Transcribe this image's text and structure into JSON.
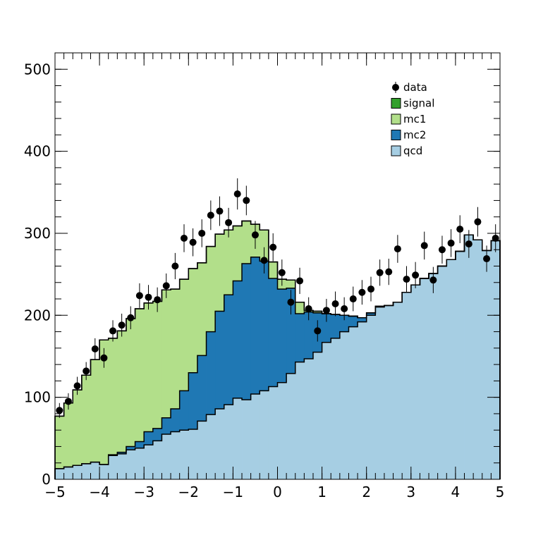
{
  "chart_data": {
    "type": "stacked-histogram",
    "title": "",
    "xlabel": "",
    "ylabel": "",
    "xlim": [
      -5,
      5
    ],
    "ylim": [
      0,
      520
    ],
    "x_ticks": [
      -5,
      -4,
      -3,
      -2,
      -1,
      0,
      1,
      2,
      3,
      4,
      5
    ],
    "x_tick_labels": [
      "−5",
      "−4",
      "−3",
      "−2",
      "−1",
      "0",
      "1",
      "2",
      "3",
      "4",
      "5"
    ],
    "y_ticks": [
      0,
      100,
      200,
      300,
      400,
      500
    ],
    "y_tick_labels": [
      "0",
      "100",
      "200",
      "300",
      "400",
      "500"
    ],
    "grid": false,
    "legend_position": "top-right",
    "bins": {
      "low": -5,
      "high": 5,
      "count": 50
    },
    "stack": [
      {
        "name": "qcd",
        "color": "#a6cee3",
        "values": [
          13,
          15,
          17,
          19,
          21,
          18,
          29,
          31,
          36,
          38,
          42,
          47,
          55,
          58,
          60,
          61,
          71,
          79,
          86,
          91,
          99,
          97,
          104,
          108,
          113,
          118,
          129,
          143,
          147,
          155,
          167,
          172,
          180,
          186,
          192,
          200,
          210,
          212,
          216,
          228,
          237,
          245,
          251,
          260,
          268,
          278,
          298,
          292,
          279,
          291
        ]
      },
      {
        "name": "mc2",
        "color": "#1f78b4",
        "values": [
          0,
          0,
          0,
          0,
          0,
          0,
          1,
          2,
          4,
          8,
          16,
          15,
          20,
          28,
          48,
          69,
          80,
          101,
          119,
          134,
          143,
          166,
          167,
          158,
          132,
          114,
          104,
          59,
          57,
          48,
          35,
          29,
          20,
          13,
          5,
          3,
          1,
          0,
          0,
          0,
          0,
          0,
          0,
          0,
          0,
          0,
          0,
          0,
          0,
          0
        ]
      },
      {
        "name": "mc1",
        "color": "#b2df8a",
        "values": [
          64,
          78,
          92,
          108,
          125,
          152,
          142,
          148,
          156,
          162,
          157,
          155,
          156,
          146,
          136,
          127,
          113,
          104,
          94,
          79,
          67,
          52,
          40,
          38,
          20,
          12,
          10,
          14,
          2,
          2,
          0,
          0,
          0,
          0,
          0,
          0,
          0,
          0,
          0,
          0,
          0,
          0,
          0,
          0,
          0,
          0,
          0,
          0,
          0,
          0
        ]
      },
      {
        "name": "signal",
        "color": "#33a02c",
        "values": [
          0,
          0,
          0,
          0,
          0,
          0,
          0,
          0,
          0,
          0,
          0,
          0,
          0,
          0,
          0,
          0,
          0,
          0,
          0,
          0,
          0,
          0,
          0,
          0,
          0,
          0,
          0,
          0,
          0,
          0,
          0,
          0,
          0,
          0,
          0,
          0,
          0,
          0,
          0,
          0,
          0,
          0,
          0,
          0,
          0,
          0,
          0,
          0,
          0,
          0
        ]
      }
    ],
    "data_points": {
      "name": "data",
      "color": "#000000",
      "x": [
        -4.9,
        -4.7,
        -4.5,
        -4.3,
        -4.1,
        -3.9,
        -3.7,
        -3.5,
        -3.3,
        -3.1,
        -2.9,
        -2.7,
        -2.5,
        -2.3,
        -2.1,
        -1.9,
        -1.7,
        -1.5,
        -1.3,
        -1.1,
        -0.9,
        -0.7,
        -0.5,
        -0.3,
        -0.1,
        0.1,
        0.3,
        0.5,
        0.7,
        0.9,
        1.1,
        1.3,
        1.5,
        1.7,
        1.9,
        2.1,
        2.3,
        2.5,
        2.7,
        2.9,
        3.1,
        3.3,
        3.5,
        3.7,
        3.9,
        4.1,
        4.3,
        4.5,
        4.7,
        4.9
      ],
      "y": [
        84,
        95,
        114,
        132,
        159,
        148,
        181,
        188,
        197,
        224,
        222,
        219,
        236,
        260,
        294,
        289,
        300,
        322,
        327,
        313,
        348,
        340,
        298,
        267,
        283,
        252,
        216,
        242,
        208,
        181,
        206,
        214,
        208,
        220,
        228,
        232,
        252,
        253,
        281,
        244,
        249,
        285,
        243,
        280,
        288,
        305,
        287,
        314,
        269,
        294
      ],
      "err": [
        9,
        10,
        11,
        11,
        13,
        12,
        13,
        14,
        14,
        15,
        15,
        15,
        15,
        16,
        17,
        17,
        17,
        18,
        18,
        18,
        19,
        18,
        17,
        16,
        17,
        16,
        15,
        16,
        14,
        13,
        14,
        15,
        14,
        15,
        15,
        15,
        16,
        16,
        17,
        16,
        16,
        17,
        16,
        17,
        17,
        17,
        17,
        18,
        16,
        17
      ]
    },
    "legend": [
      {
        "label": "data",
        "kind": "marker",
        "color": "#000000"
      },
      {
        "label": "signal",
        "kind": "box",
        "color": "#33a02c"
      },
      {
        "label": "mc1",
        "kind": "box",
        "color": "#b2df8a"
      },
      {
        "label": "mc2",
        "kind": "box",
        "color": "#1f78b4"
      },
      {
        "label": "qcd",
        "kind": "box",
        "color": "#a6cee3"
      }
    ]
  }
}
